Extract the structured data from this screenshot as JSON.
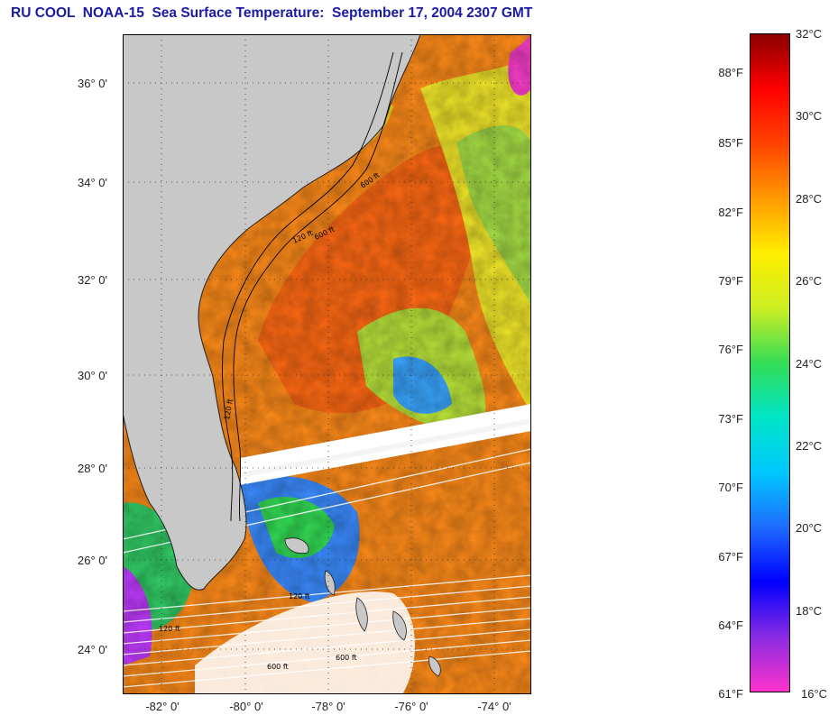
{
  "title": "RU COOL  NOAA-15  Sea Surface Temperature:  September 17, 2004 2307 GMT",
  "map": {
    "latitude_labels": [
      "36° 0'",
      "34° 0'",
      "32° 0'",
      "30° 0'",
      "28° 0'",
      "26° 0'",
      "24° 0'"
    ],
    "latitude_values": [
      36,
      34,
      32,
      30,
      28,
      26,
      24
    ],
    "longitude_labels": [
      "-82° 0'",
      "-80° 0'",
      "-78° 0'",
      "-76° 0'",
      "-74° 0'"
    ],
    "longitude_values": [
      -82,
      -80,
      -78,
      -76,
      -74
    ],
    "isobath_labels": [
      "600 ft",
      "120 ft",
      "600 ft",
      "120 ft",
      "120 ft",
      "600 ft",
      "120 ft",
      "600 ft"
    ],
    "land_color": "#c8c8c8",
    "cloud_color": "#ffffff"
  },
  "colorbar": {
    "celsius_labels": [
      "32°C",
      "30°C",
      "28°C",
      "26°C",
      "24°C",
      "22°C",
      "20°C",
      "18°C",
      "16°C"
    ],
    "celsius_values": [
      32,
      30,
      28,
      26,
      24,
      22,
      20,
      18,
      16
    ],
    "fahrenheit_labels": [
      "88°F",
      "85°F",
      "82°F",
      "79°F",
      "76°F",
      "73°F",
      "70°F",
      "67°F",
      "64°F",
      "61°F"
    ],
    "fahrenheit_values": [
      88,
      85,
      82,
      79,
      76,
      73,
      70,
      67,
      64,
      61
    ],
    "range_celsius": [
      16,
      32
    ],
    "stops": [
      "#ff33cc",
      "#8a2be2",
      "#0000ff",
      "#1e6cff",
      "#00c8ff",
      "#00e5c8",
      "#33dd55",
      "#ccee22",
      "#ffee00",
      "#ff9900",
      "#ff4400",
      "#ff0000",
      "#8b0000"
    ]
  }
}
